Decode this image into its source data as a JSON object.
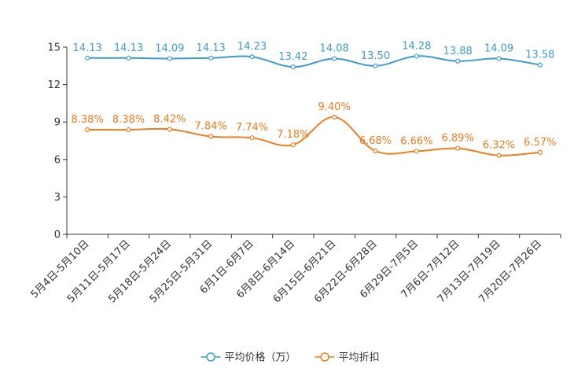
{
  "chart_data": {
    "type": "line",
    "categories": [
      "5月4日-5月10日",
      "5月11日-5月17日",
      "5月18日-5月24日",
      "5月25日-5月31日",
      "6月1日-6月7日",
      "6月8日-6月14日",
      "6月15日-6月21日",
      "6月22日-6月28日",
      "6月29日-7月5日",
      "7月6日-7月12日",
      "7月13日-7月19日",
      "7月20日-7月26日"
    ],
    "ylim": [
      0,
      15
    ],
    "yticks": [
      0,
      3,
      6,
      9,
      12,
      15
    ],
    "ytick_labels": [
      "0",
      "3",
      "6",
      "9",
      "12",
      "15"
    ],
    "series": [
      {
        "name": "平均价格（万）",
        "color": "#3d9bd1",
        "values": [
          14.13,
          14.13,
          14.09,
          14.13,
          14.23,
          13.42,
          14.08,
          13.5,
          14.28,
          13.88,
          14.09,
          13.58
        ],
        "labels": [
          "14.13",
          "14.13",
          "14.09",
          "14.13",
          "14.23",
          "13.42",
          "14.08",
          "13.50",
          "14.28",
          "13.88",
          "14.09",
          "13.58"
        ]
      },
      {
        "name": "平均折扣",
        "color": "#f07d1e",
        "values": [
          8.38,
          8.38,
          8.42,
          7.84,
          7.74,
          7.18,
          9.4,
          6.68,
          6.66,
          6.89,
          6.32,
          6.57
        ],
        "labels": [
          "8.38%",
          "8.38%",
          "8.42%",
          "7.84%",
          "7.74%",
          "7.18%",
          "9.40%",
          "6.68%",
          "6.66%",
          "6.89%",
          "6.32%",
          "6.57%"
        ]
      }
    ],
    "legend_position": "bottom-center",
    "axis_color": "#333333"
  }
}
